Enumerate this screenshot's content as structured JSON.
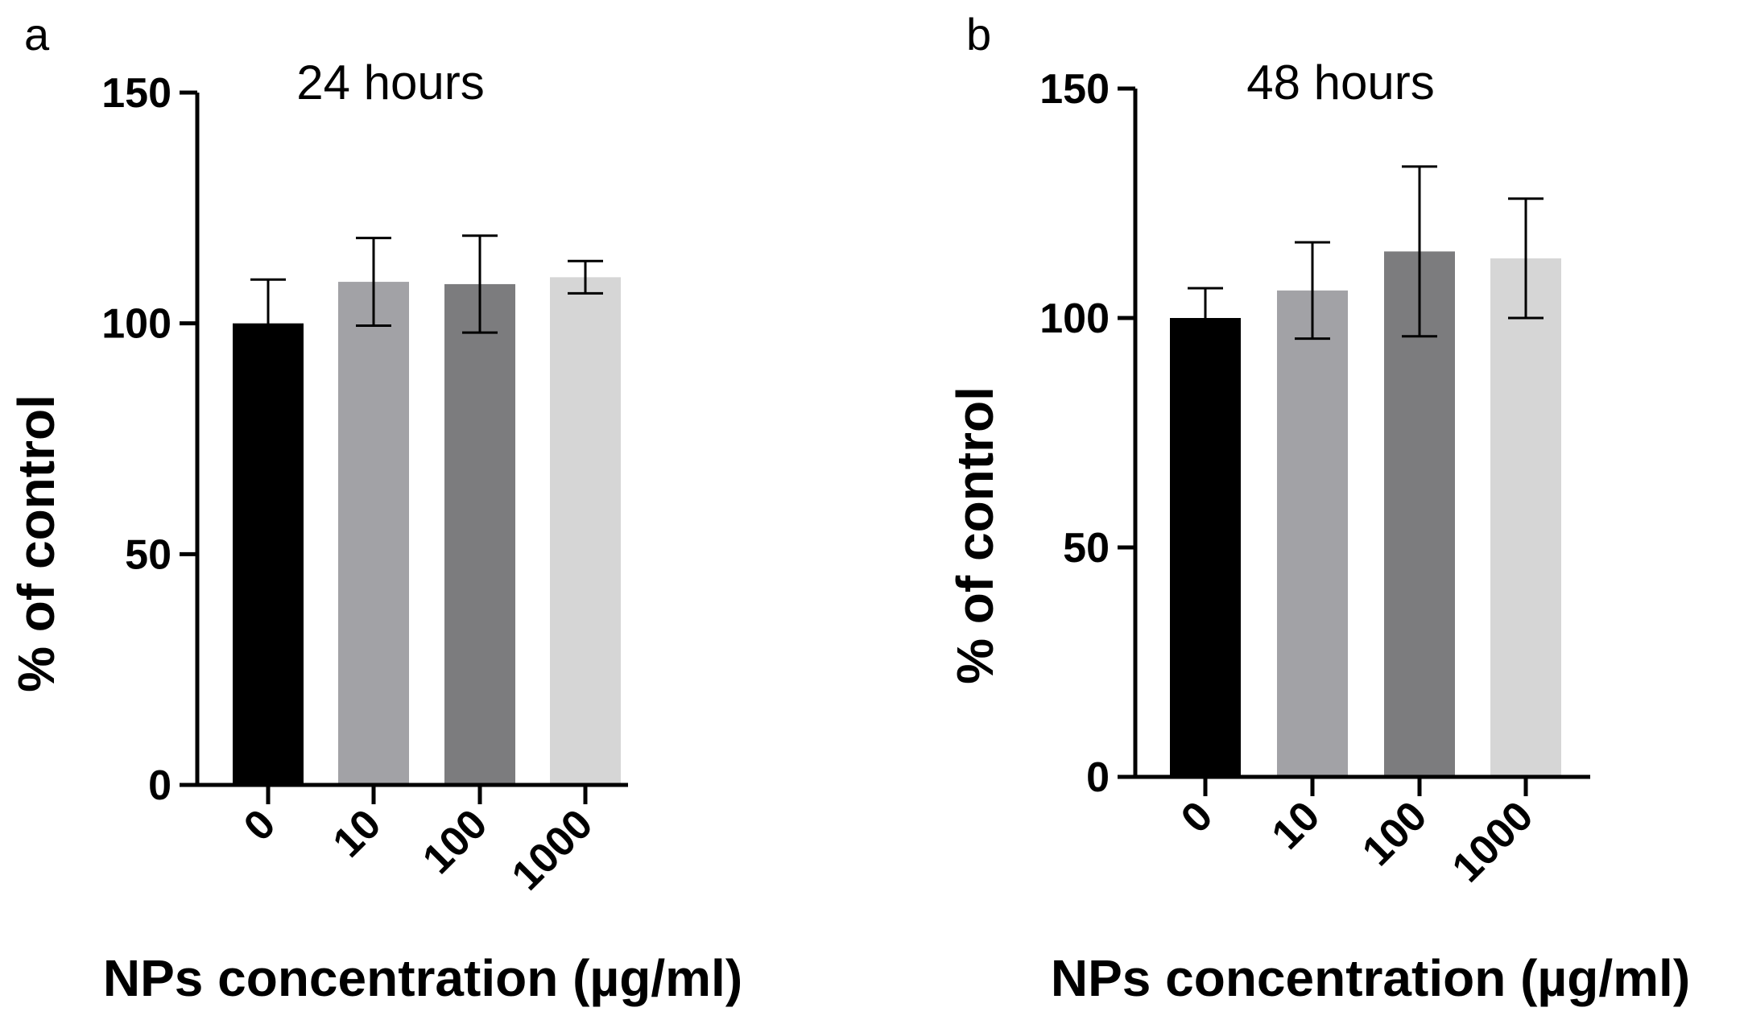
{
  "chart_data": [
    {
      "type": "bar",
      "panel": "a",
      "title": "24 hours",
      "xlabel": "NPs concentration (µg/ml)",
      "ylabel": "% of control",
      "ylim": [
        0,
        150
      ],
      "yticks": [
        0,
        50,
        100,
        150
      ],
      "categories": [
        "0",
        "10",
        "100",
        "1000"
      ],
      "values": [
        100,
        109,
        108.5,
        110
      ],
      "errors": [
        9.5,
        9.5,
        10.5,
        3.5
      ],
      "colors": [
        "#000000",
        "#a2a2a6",
        "#7c7c7e",
        "#d6d6d6"
      ]
    },
    {
      "type": "bar",
      "panel": "b",
      "title": "48 hours",
      "xlabel": "NPs concentration (µg/ml)",
      "ylabel": "% of control",
      "ylim": [
        0,
        150
      ],
      "yticks": [
        0,
        50,
        100,
        150
      ],
      "categories": [
        "0",
        "10",
        "100",
        "1000"
      ],
      "values": [
        100,
        106,
        114.5,
        113
      ],
      "errors": [
        6.5,
        10.5,
        18.5,
        13
      ],
      "colors": [
        "#000000",
        "#a2a2a6",
        "#7c7c7e",
        "#d6d6d6"
      ]
    }
  ]
}
